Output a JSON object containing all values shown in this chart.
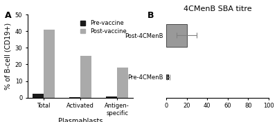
{
  "panel_A": {
    "categories": [
      "Total",
      "Activated",
      "Antigen-\nspecific"
    ],
    "pre_vaccine": [
      2.5,
      0.4,
      0.8
    ],
    "post_vaccine": [
      41.0,
      25.0,
      18.0
    ],
    "pre_color": "#1a1a1a",
    "post_color": "#aaaaaa",
    "ylabel": "% of B-cell (CD19+)",
    "xlabel": "Plasmablasts",
    "ylim": [
      0,
      50
    ],
    "yticks": [
      0,
      10,
      20,
      30,
      40,
      50
    ],
    "bar_width": 0.3,
    "legend_labels": [
      "Pre-vaccine",
      "Post-vaccine"
    ]
  },
  "panel_B": {
    "title": "4CMenB SBA titre",
    "categories": [
      "Post-4CMenB",
      "Pre-4CMenB"
    ],
    "values": [
      20.0,
      2.0
    ],
    "errors": [
      10.0,
      1.2
    ],
    "bar_color": [
      "#999999",
      "#111111"
    ],
    "xlim": [
      0,
      100
    ],
    "xticks": [
      0,
      20,
      40,
      60,
      80,
      100
    ],
    "bar_height_post": 0.55,
    "bar_height_pre": 0.12
  },
  "label_fontsize": 7,
  "tick_fontsize": 6,
  "title_fontsize": 8
}
